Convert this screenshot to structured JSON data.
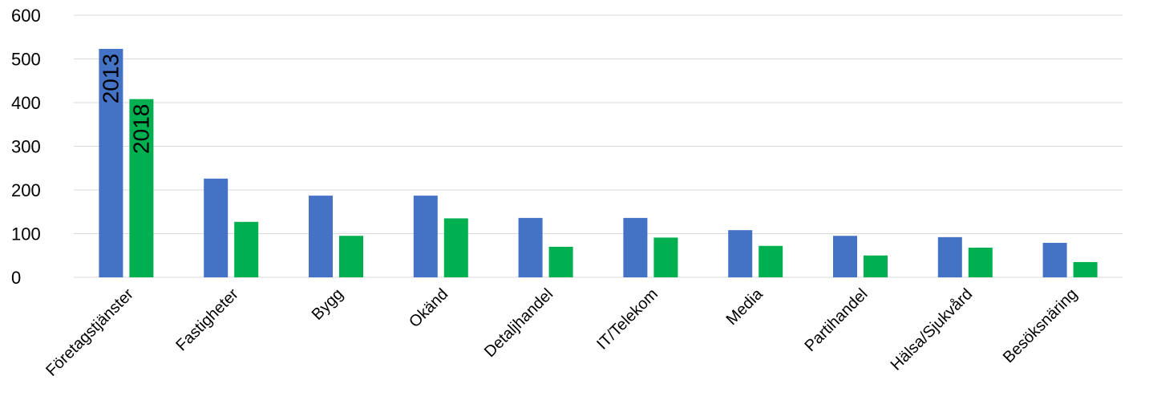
{
  "chart_data": {
    "type": "bar",
    "title": "",
    "xlabel": "",
    "ylabel": "",
    "ylim": [
      0,
      600
    ],
    "yticks": [
      "0",
      "100",
      "200",
      "300",
      "400",
      "500",
      "600"
    ],
    "grid": true,
    "categories": [
      "Företagstjänster",
      "Fastigheter",
      "Bygg",
      "Okänd",
      "Detaljhandel",
      "IT/Telekom",
      "Media",
      "Partihandel",
      "Hälsa/Sjukvård",
      "Besöksnäring"
    ],
    "series": [
      {
        "name": "2013",
        "color": "#4472c4",
        "values": [
          523,
          226,
          187,
          187,
          136,
          136,
          108,
          95,
          92,
          79
        ]
      },
      {
        "name": "2018",
        "color": "#00b050",
        "values": [
          408,
          127,
          95,
          135,
          70,
          91,
          72,
          50,
          68,
          35
        ]
      }
    ]
  }
}
